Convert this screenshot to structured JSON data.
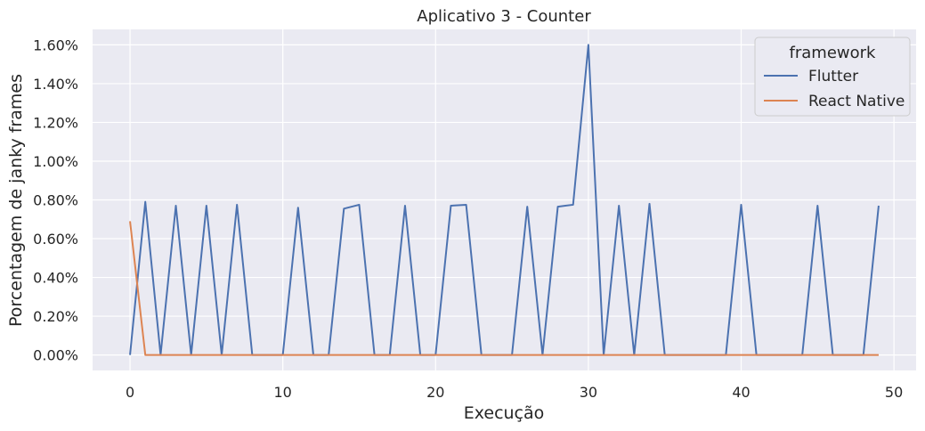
{
  "chart_data": {
    "type": "line",
    "title": "Aplicativo 3 - Counter",
    "xlabel": "Execução",
    "ylabel": "Porcentagem de janky frames",
    "xlim": [
      -2.45,
      51.45
    ],
    "ylim": [
      -0.0008,
      0.0168
    ],
    "x_ticks": [
      0,
      10,
      20,
      30,
      40,
      50
    ],
    "y_ticks": [
      0,
      0.002,
      0.004,
      0.006,
      0.008,
      0.01,
      0.012,
      0.014,
      0.016
    ],
    "y_tick_labels": [
      "0.00%",
      "0.20%",
      "0.40%",
      "0.60%",
      "0.80%",
      "1.00%",
      "1.20%",
      "1.40%",
      "1.60%"
    ],
    "grid": true,
    "legend": {
      "title": "framework",
      "placement": "top-right"
    },
    "x": [
      0,
      1,
      2,
      3,
      4,
      5,
      6,
      7,
      8,
      9,
      10,
      11,
      12,
      13,
      14,
      15,
      16,
      17,
      18,
      19,
      20,
      21,
      22,
      23,
      24,
      25,
      26,
      27,
      28,
      29,
      30,
      31,
      32,
      33,
      34,
      35,
      36,
      37,
      38,
      39,
      40,
      41,
      42,
      43,
      44,
      45,
      46,
      47,
      48,
      49
    ],
    "series": [
      {
        "name": "Flutter",
        "color": "#4c72b0",
        "values": [
          0,
          0.0079,
          0,
          0.0077,
          0,
          0.0077,
          0,
          0.00775,
          0,
          0,
          0,
          0.0076,
          0,
          0,
          0.00755,
          0.00775,
          0,
          0,
          0.0077,
          0,
          0,
          0.0077,
          0.00775,
          0,
          0,
          0,
          0.00765,
          0,
          0.00765,
          0.00775,
          0.016,
          0,
          0.0077,
          0,
          0.0078,
          0,
          0,
          0,
          0,
          0,
          0.00775,
          0,
          0,
          0,
          0,
          0.0077,
          0,
          0,
          0,
          0.0077
        ]
      },
      {
        "name": "React Native",
        "color": "#dd8452",
        "values": [
          0.0069,
          0,
          0,
          0,
          0,
          0,
          0,
          0,
          0,
          0,
          0,
          0,
          0,
          0,
          0,
          0,
          0,
          0,
          0,
          0,
          0,
          0,
          0,
          0,
          0,
          0,
          0,
          0,
          0,
          0,
          0,
          0,
          0,
          0,
          0,
          0,
          0,
          0,
          0,
          0,
          0,
          0,
          0,
          0,
          0,
          0,
          0,
          0,
          0,
          0
        ]
      }
    ]
  }
}
